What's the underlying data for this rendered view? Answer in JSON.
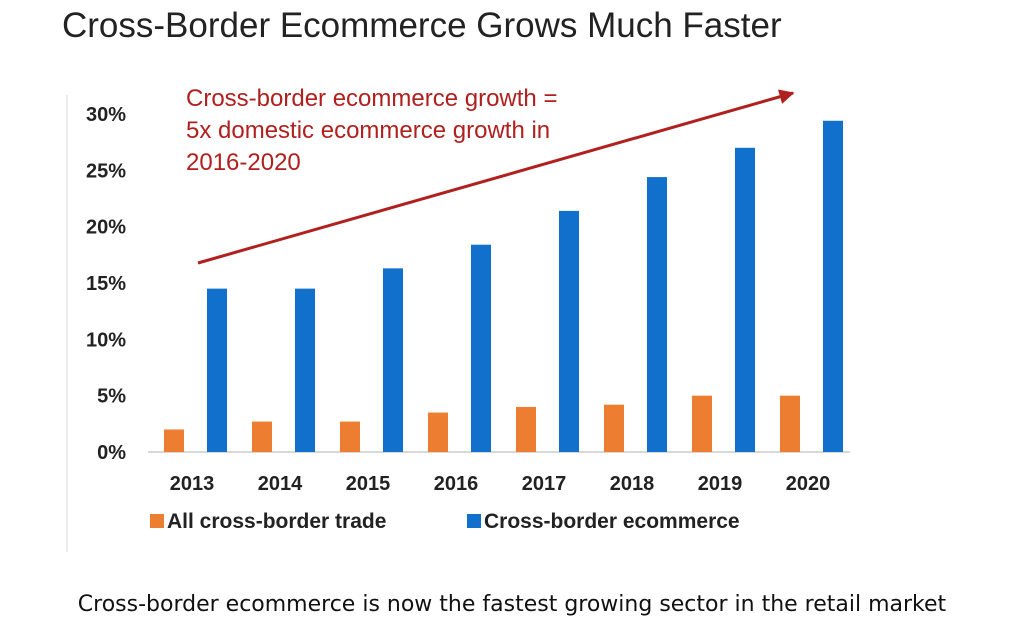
{
  "chart_data": {
    "type": "bar",
    "title": "Cross-Border Ecommerce Grows Much Faster",
    "categories": [
      "2013",
      "2014",
      "2015",
      "2016",
      "2017",
      "2018",
      "2019",
      "2020"
    ],
    "series": [
      {
        "name": "All cross-border trade",
        "values": [
          2,
          2.7,
          2.7,
          3.5,
          4,
          4.2,
          5,
          5
        ],
        "color": "#ed7d31"
      },
      {
        "name": "Cross-border ecommerce",
        "values": [
          14.5,
          14.5,
          16.3,
          18.4,
          21.4,
          24.4,
          27,
          29.4
        ],
        "color": "#1170cc"
      }
    ],
    "ylim": [
      0,
      30
    ],
    "yticks": [
      "0%",
      "5%",
      "10%",
      "15%",
      "20%",
      "25%",
      "30%"
    ],
    "ytick_values": [
      0,
      5,
      10,
      15,
      20,
      25,
      30
    ],
    "xlabel": "",
    "ylabel": "",
    "legend_position": "bottom",
    "grid": false,
    "annotation": {
      "lines": [
        "Cross-border ecommerce growth =",
        "5x domestic ecommerce growth in",
        "2016-2020"
      ],
      "color": "#b0201e"
    }
  },
  "caption": "Cross-border ecommerce is now the fastest growing sector in the retail market"
}
